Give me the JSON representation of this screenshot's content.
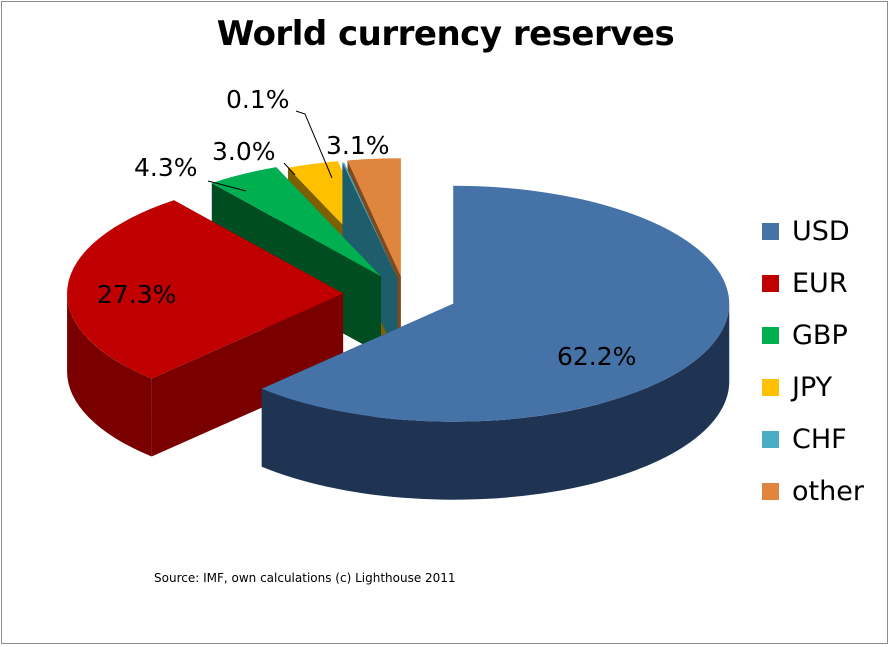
{
  "chart_data": {
    "type": "pie",
    "title": "World currency reserves",
    "categories": [
      "USD",
      "EUR",
      "GBP",
      "JPY",
      "CHF",
      "other"
    ],
    "values": [
      62.2,
      27.3,
      4.3,
      3.0,
      0.1,
      3.1
    ],
    "data_labels": [
      "62.2%",
      "27.3%",
      "4.3%",
      "3.0%",
      "0.1%",
      "3.1%"
    ],
    "colors": [
      "#4572A7",
      "#C00000",
      "#00B050",
      "#FFC000",
      "#4BACC6",
      "#E0853D"
    ],
    "side_colors": [
      "#1F3453",
      "#7A0000",
      "#004D22",
      "#7F6000",
      "#1E5D6C",
      "#7F4A1E"
    ],
    "style": "3d-exploded",
    "legend_position": "right"
  },
  "source": "Source: IMF, own calculations (c) Lighthouse 2011"
}
